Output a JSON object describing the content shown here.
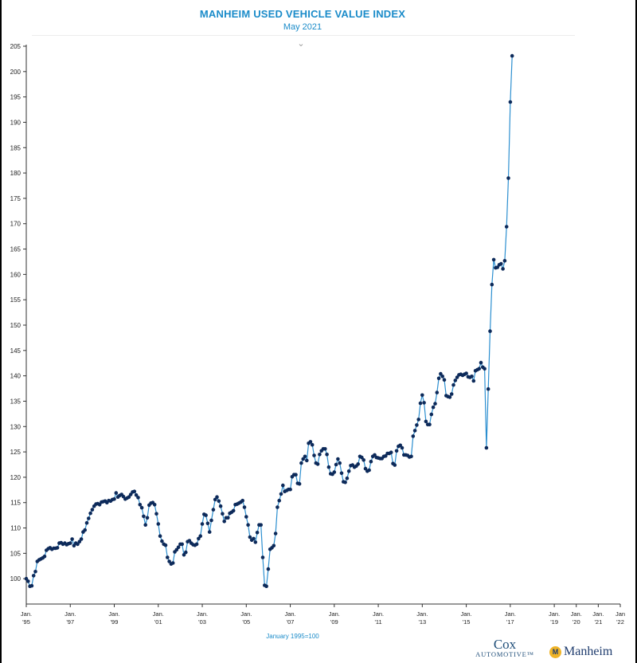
{
  "chart_data": {
    "type": "line",
    "title": "MANHEIM USED VEHICLE VALUE INDEX",
    "subtitle": "May 2021",
    "x_footnote": "January 1995=100",
    "ylim": [
      95,
      205
    ],
    "y_ticks": [
      100,
      105,
      110,
      115,
      120,
      125,
      130,
      135,
      140,
      145,
      150,
      155,
      160,
      165,
      170,
      175,
      180,
      185,
      190,
      195,
      200,
      205
    ],
    "xlim": [
      1995,
      2022
    ],
    "x_ticks": [
      {
        "x": 1995,
        "label": [
          "Jan.",
          "'95"
        ]
      },
      {
        "x": 1997,
        "label": [
          "Jan.",
          "'97"
        ]
      },
      {
        "x": 1999,
        "label": [
          "Jan.",
          "'99"
        ]
      },
      {
        "x": 2001,
        "label": [
          "Jan.",
          "'01"
        ]
      },
      {
        "x": 2003,
        "label": [
          "Jan.",
          "'03"
        ]
      },
      {
        "x": 2005,
        "label": [
          "Jan.",
          "'05"
        ]
      },
      {
        "x": 2007,
        "label": [
          "Jan.",
          "'07"
        ]
      },
      {
        "x": 2009,
        "label": [
          "Jan.",
          "'09"
        ]
      },
      {
        "x": 2011,
        "label": [
          "Jan.",
          "'11"
        ]
      },
      {
        "x": 2013,
        "label": [
          "Jan.",
          "'13"
        ]
      },
      {
        "x": 2015,
        "label": [
          "Jan.",
          "'15"
        ]
      },
      {
        "x": 2017,
        "label": [
          "Jan.",
          "'17"
        ]
      },
      {
        "x": 2019,
        "label": [
          "Jan.",
          "'19"
        ]
      },
      {
        "x": 2020,
        "label": [
          "Jan.",
          "'20"
        ]
      },
      {
        "x": 2021,
        "label": [
          "Jan.",
          "'21"
        ]
      },
      {
        "x": 2022,
        "label": [
          "Jan",
          "'22"
        ]
      }
    ],
    "grid": false,
    "legend": "none",
    "colors": {
      "line": "#2c8fd0",
      "marker": "#0d2a5a",
      "axis": "#333333",
      "title": "#1a8bc9"
    },
    "series": [
      {
        "start": "1995-01",
        "frequency": "monthly",
        "values": [
          100.0,
          99.5,
          98.5,
          98.6,
          100.6,
          101.4,
          103.4,
          103.7,
          103.9,
          104.1,
          104.4,
          105.6,
          105.9,
          106.1,
          105.8,
          106.0,
          106.0,
          106.1,
          107.0,
          107.1,
          106.8,
          107.0,
          106.7,
          106.9,
          107.0,
          107.8,
          106.5,
          107.0,
          106.8,
          107.3,
          107.8,
          109.2,
          109.6,
          111.0,
          111.9,
          112.9,
          113.6,
          114.3,
          114.7,
          114.8,
          114.6,
          115.1,
          115.2,
          115.3,
          115.0,
          115.4,
          115.3,
          115.6,
          115.7,
          116.9,
          116.1,
          116.4,
          116.6,
          116.2,
          115.7,
          115.9,
          116.1,
          116.6,
          117.1,
          117.2,
          116.5,
          116.0,
          114.6,
          114.0,
          112.3,
          110.6,
          112.0,
          114.5,
          114.9,
          115.0,
          114.6,
          112.8,
          110.8,
          108.4,
          107.4,
          106.8,
          106.6,
          104.2,
          103.4,
          102.9,
          103.1,
          105.3,
          105.7,
          106.2,
          106.8,
          106.8,
          104.7,
          105.2,
          107.3,
          107.5,
          107.0,
          106.7,
          106.6,
          106.8,
          107.9,
          108.4,
          110.8,
          112.7,
          112.5,
          110.9,
          109.2,
          111.5,
          113.6,
          115.6,
          116.1,
          115.3,
          114.3,
          112.8,
          111.3,
          112.0,
          112.0,
          112.9,
          113.1,
          113.4,
          114.6,
          114.7,
          114.9,
          115.1,
          115.4,
          114.1,
          112.2,
          110.6,
          108.2,
          107.6,
          107.9,
          107.2,
          109.1,
          110.6,
          110.6,
          104.2,
          98.7,
          98.5,
          101.9,
          105.8,
          106.1,
          106.5,
          108.9,
          114.1,
          115.4,
          116.7,
          118.4,
          117.2,
          117.4,
          117.6,
          117.6,
          120.1,
          120.5,
          120.5,
          118.8,
          118.7,
          122.8,
          123.6,
          124.1,
          123.3,
          126.7,
          127.0,
          126.4,
          124.3,
          122.8,
          122.6,
          124.5,
          125.2,
          125.6,
          125.6,
          124.5,
          122.0,
          120.7,
          120.6,
          121.0,
          122.5,
          123.6,
          122.8,
          120.8,
          119.1,
          119.0,
          119.8,
          121.2,
          122.3,
          122.4,
          122.0,
          122.2,
          122.6,
          124.1,
          123.9,
          123.4,
          121.7,
          121.2,
          121.4,
          123.1,
          124.1,
          124.4,
          123.9,
          123.8,
          123.7,
          123.7,
          124.1,
          124.2,
          124.7,
          124.7,
          124.9,
          122.7,
          122.4,
          125.2,
          126.1,
          126.3,
          125.8,
          124.4,
          124.4,
          124.3,
          124.0,
          124.1,
          128.1,
          129.2,
          130.3,
          131.4,
          134.6,
          136.2,
          134.7,
          131.0,
          130.4,
          130.4,
          132.4,
          133.8,
          134.5,
          136.7,
          139.5,
          140.4,
          139.9,
          139.2,
          136.1,
          135.9,
          135.8,
          136.4,
          138.2,
          139.1,
          139.7,
          140.2,
          140.3,
          140.1,
          140.3,
          140.5,
          139.8,
          139.7,
          139.9,
          139.0,
          141.0,
          141.2,
          141.4,
          142.6,
          141.7,
          141.4,
          125.8,
          137.4,
          148.8,
          158.0,
          162.9,
          161.3,
          161.4,
          161.9,
          162.1,
          161.1,
          162.7,
          169.4,
          179.0,
          194.0,
          203.1
        ]
      }
    ]
  }
}
